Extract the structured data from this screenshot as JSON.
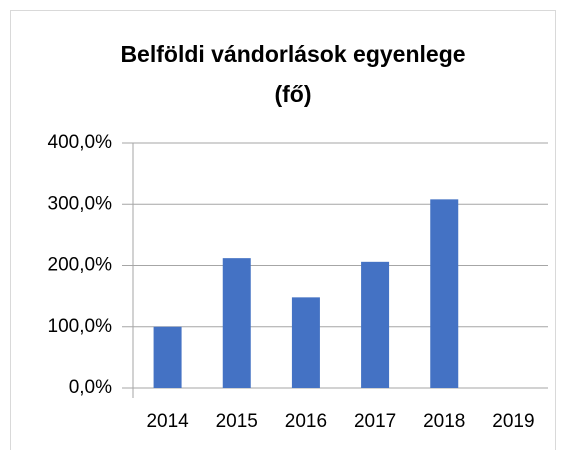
{
  "chart_data": {
    "type": "bar",
    "title": [
      "Belföldi vándorlások egyenlege",
      "(fő)"
    ],
    "categories": [
      "2014",
      "2015",
      "2016",
      "2017",
      "2018",
      "2019"
    ],
    "values": [
      100,
      212,
      148,
      206,
      308,
      0
    ],
    "color": "#4472c4",
    "ylim": [
      0,
      400
    ],
    "yticks": [
      {
        "value": 0,
        "label": "0,0%"
      },
      {
        "value": 100,
        "label": "100,0%"
      },
      {
        "value": 200,
        "label": "200,0%"
      },
      {
        "value": 300,
        "label": "300,0%"
      },
      {
        "value": 400,
        "label": "400,0%"
      }
    ],
    "grid": true
  }
}
